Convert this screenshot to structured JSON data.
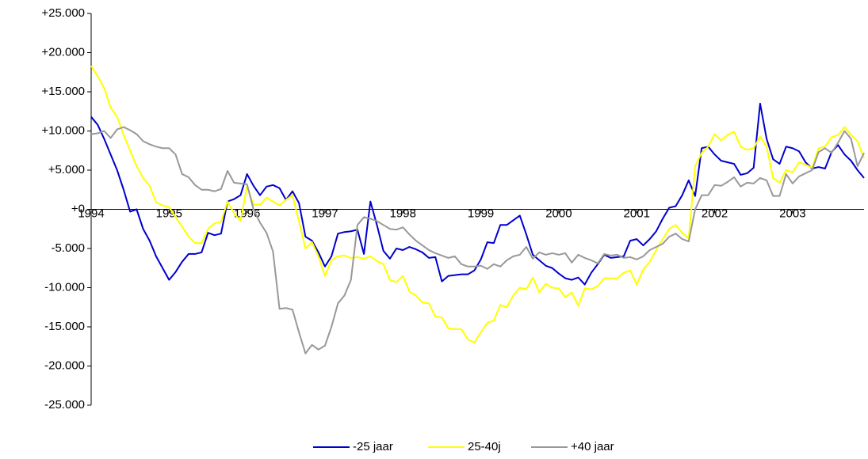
{
  "chart_data": {
    "type": "line",
    "categories": [
      "1994",
      null,
      null,
      null,
      null,
      null,
      null,
      null,
      null,
      null,
      null,
      null,
      "1995",
      null,
      null,
      null,
      null,
      null,
      null,
      null,
      null,
      null,
      null,
      null,
      "1996",
      null,
      null,
      null,
      null,
      null,
      null,
      null,
      null,
      null,
      null,
      null,
      "1997",
      null,
      null,
      null,
      null,
      null,
      null,
      null,
      null,
      null,
      null,
      null,
      "1998",
      null,
      null,
      null,
      null,
      null,
      null,
      null,
      null,
      null,
      null,
      null,
      "1999",
      null,
      null,
      null,
      null,
      null,
      null,
      null,
      null,
      null,
      null,
      null,
      "2000",
      null,
      null,
      null,
      null,
      null,
      null,
      null,
      null,
      null,
      null,
      null,
      "2001",
      null,
      null,
      null,
      null,
      null,
      null,
      null,
      null,
      null,
      null,
      null,
      "2002",
      null,
      null,
      null,
      null,
      null,
      null,
      null,
      null,
      null,
      null,
      null,
      "2003",
      null,
      null,
      null,
      null,
      null,
      null,
      null,
      null,
      null,
      null,
      null
    ],
    "series": [
      {
        "name": "-25 jaar",
        "color": "#0000cc",
        "values": [
          11800,
          10800,
          9000,
          7000,
          5000,
          2500,
          -300,
          0,
          -2500,
          -4000,
          -6000,
          -7500,
          -9000,
          -8000,
          -6700,
          -5700,
          -5700,
          -5500,
          -3000,
          -3300,
          -3100,
          1000,
          1300,
          1800,
          4500,
          3000,
          1800,
          2900,
          3100,
          2700,
          1200,
          2300,
          800,
          -3500,
          -4000,
          -5500,
          -7300,
          -6000,
          -3100,
          -2900,
          -2800,
          -2600,
          -5700,
          1000,
          -2000,
          -5300,
          -6300,
          -5000,
          -5200,
          -4800,
          -5100,
          -5500,
          -6200,
          -6100,
          -9200,
          -8500,
          -8400,
          -8300,
          -8300,
          -7800,
          -6400,
          -4200,
          -4300,
          -2000,
          -2000,
          -1400,
          -800,
          -3200,
          -5800,
          -6500,
          -7200,
          -7500,
          -8200,
          -8800,
          -9000,
          -8700,
          -9600,
          -8100,
          -7000,
          -5800,
          -6200,
          -6100,
          -6000,
          -4000,
          -3800,
          -4600,
          -3800,
          -2800,
          -1200,
          200,
          400,
          1800,
          3700,
          1700,
          7800,
          8000,
          7000,
          6200,
          6000,
          5800,
          4400,
          4600,
          5300,
          13500,
          9000,
          6400,
          5800,
          8000,
          7800,
          7400,
          6000,
          5200,
          5400,
          5200,
          7300,
          8200,
          7000,
          6200,
          5000,
          4000
        ]
      },
      {
        "name": "25-40j",
        "color": "#ffff00",
        "values": [
          18300,
          17000,
          15500,
          13000,
          11800,
          9500,
          7500,
          5500,
          4000,
          3000,
          900,
          500,
          300,
          -1000,
          -2200,
          -3500,
          -4300,
          -4300,
          -2500,
          -1800,
          -1600,
          1000,
          -500,
          -1500,
          3000,
          600,
          600,
          1500,
          1000,
          500,
          1200,
          1800,
          -1500,
          -5000,
          -4200,
          -6000,
          -8500,
          -6500,
          -6000,
          -5900,
          -6200,
          -6100,
          -6300,
          -6000,
          -6600,
          -7000,
          -9000,
          -9300,
          -8500,
          -10500,
          -11000,
          -11900,
          -12000,
          -13700,
          -13800,
          -15200,
          -15300,
          -15300,
          -16600,
          -17000,
          -15700,
          -14500,
          -14200,
          -12200,
          -12500,
          -11000,
          -10000,
          -10200,
          -8700,
          -10600,
          -9500,
          -10000,
          -10100,
          -11200,
          -10600,
          -12300,
          -10100,
          -10200,
          -9800,
          -8800,
          -8800,
          -8800,
          -8100,
          -7800,
          -9600,
          -7700,
          -6700,
          -5200,
          -3800,
          -2500,
          -2000,
          -3000,
          -3700,
          5500,
          7200,
          8000,
          9600,
          8800,
          9500,
          9900,
          8000,
          7600,
          7800,
          9300,
          8000,
          4000,
          3400,
          5000,
          4700,
          6000,
          5700,
          5300,
          7800,
          8000,
          9200,
          9500,
          10500,
          9500,
          8700,
          6500
        ]
      },
      {
        "name": "+40 jaar",
        "color": "#999999",
        "values": [
          9600,
          9700,
          10000,
          9100,
          10200,
          10500,
          10100,
          9600,
          8700,
          8300,
          8000,
          7800,
          7800,
          7000,
          4500,
          4100,
          3100,
          2500,
          2500,
          2300,
          2600,
          4900,
          3400,
          3300,
          3200,
          0,
          -1700,
          -3000,
          -5400,
          -12700,
          -12600,
          -12800,
          -15700,
          -18400,
          -17300,
          -17900,
          -17400,
          -15000,
          -12000,
          -11000,
          -9000,
          -2000,
          -1000,
          -1200,
          -1500,
          -2000,
          -2500,
          -2600,
          -2300,
          -3200,
          -4000,
          -4600,
          -5200,
          -5600,
          -5900,
          -6200,
          -6000,
          -7000,
          -7300,
          -7300,
          -7200,
          -7600,
          -7000,
          -7300,
          -6500,
          -6000,
          -5800,
          -4800,
          -6300,
          -5500,
          -5800,
          -5600,
          -5800,
          -5600,
          -6800,
          -5800,
          -6200,
          -6500,
          -6900,
          -5700,
          -5900,
          -5800,
          -6200,
          -6100,
          -6400,
          -6000,
          -5200,
          -4800,
          -4400,
          -3500,
          -3100,
          -3800,
          -4100,
          0,
          1800,
          1800,
          3100,
          3000,
          3500,
          4100,
          2900,
          3400,
          3300,
          4000,
          3700,
          1700,
          1700,
          4500,
          3300,
          4200,
          4600,
          5000,
          7300,
          7800,
          7200,
          8500,
          10000,
          9000,
          5500,
          7200
        ]
      }
    ],
    "ylim": [
      -25000,
      25000
    ],
    "yticks": [
      {
        "value": -25000,
        "label": "-25.000"
      },
      {
        "value": -20000,
        "label": "-20.000"
      },
      {
        "value": -15000,
        "label": "-15.000"
      },
      {
        "value": -10000,
        "label": "-10.000"
      },
      {
        "value": -5000,
        "label": "-5.000"
      },
      {
        "value": 0,
        "label": "+0"
      },
      {
        "value": 5000,
        "label": "+5.000"
      },
      {
        "value": 10000,
        "label": "+10.000"
      },
      {
        "value": 15000,
        "label": "+15.000"
      },
      {
        "value": 20000,
        "label": "+20.000"
      },
      {
        "value": 25000,
        "label": "+25.000"
      }
    ],
    "grid": false,
    "legend": "bottom"
  }
}
